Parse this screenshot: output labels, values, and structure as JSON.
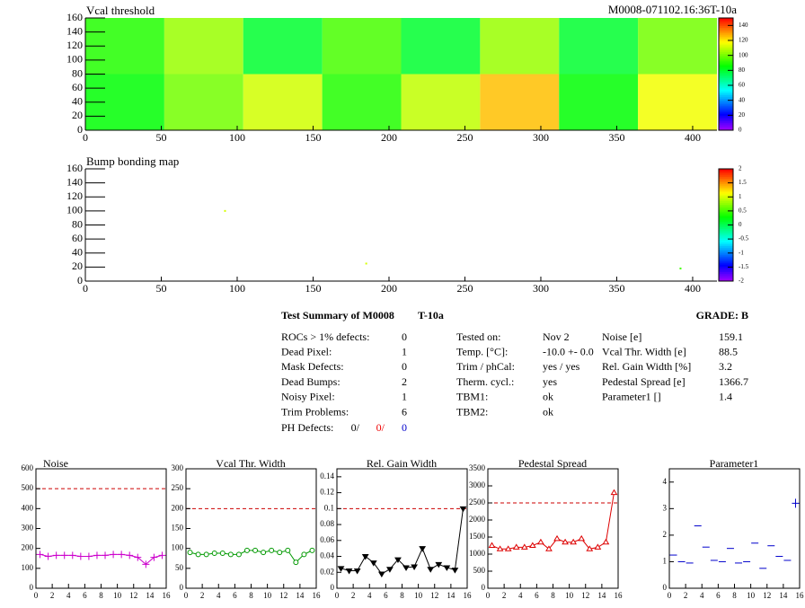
{
  "chart_data": [
    {
      "type": "heatmap",
      "title": "Vcal threshold",
      "subtitle": "M0008-071102.16:36T-10a",
      "xlim": [
        0,
        416
      ],
      "xticks": [
        0,
        50,
        100,
        150,
        200,
        250,
        300,
        350,
        400
      ],
      "ylim": [
        0,
        160
      ],
      "yticks": [
        0,
        20,
        40,
        60,
        80,
        100,
        120,
        140,
        160
      ],
      "zlim": [
        0,
        150
      ],
      "zticks": [
        0,
        20,
        40,
        60,
        80,
        100,
        120,
        140
      ],
      "values": [
        [
          85,
          100,
          112,
          90,
          110,
          126,
          85,
          116
        ],
        [
          90,
          105,
          80,
          95,
          80,
          105,
          80,
          100
        ]
      ]
    },
    {
      "type": "scatter_map",
      "title": "Bump bonding map",
      "xlim": [
        0,
        416
      ],
      "xticks": [
        0,
        50,
        100,
        150,
        200,
        250,
        300,
        350,
        400
      ],
      "ylim": [
        0,
        160
      ],
      "yticks": [
        0,
        20,
        40,
        60,
        80,
        100,
        120,
        140,
        160
      ],
      "zlim": [
        -2,
        2
      ],
      "zticks": [
        -2,
        -1.5,
        -1,
        -0.5,
        0,
        0.5,
        1,
        1.5,
        2
      ],
      "x": [
        92,
        185,
        392
      ],
      "y": [
        100,
        25,
        18
      ],
      "values": [
        1,
        1,
        0.5
      ]
    },
    {
      "type": "line",
      "title": "Noise",
      "marker": "plus",
      "color": "#cc00cc",
      "threshold": 500,
      "x": [
        0.5,
        1.5,
        2.5,
        3.5,
        4.5,
        5.5,
        6.5,
        7.5,
        8.5,
        9.5,
        10.5,
        11.5,
        12.5,
        13.5,
        14.5,
        15.5
      ],
      "values": [
        170,
        160,
        165,
        165,
        165,
        160,
        160,
        165,
        165,
        170,
        170,
        165,
        155,
        120,
        155,
        165
      ],
      "xlim": [
        0,
        16
      ],
      "xticks": [
        0,
        2,
        4,
        6,
        8,
        10,
        12,
        14,
        16
      ],
      "ylim": [
        0,
        600
      ],
      "yticks": [
        0,
        100,
        200,
        300,
        400,
        500,
        600
      ]
    },
    {
      "type": "line",
      "title": "Vcal Thr. Width",
      "marker": "circle",
      "color": "#009900",
      "threshold": 200,
      "x": [
        0.5,
        1.5,
        2.5,
        3.5,
        4.5,
        5.5,
        6.5,
        7.5,
        8.5,
        9.5,
        10.5,
        11.5,
        12.5,
        13.5,
        14.5,
        15.5
      ],
      "values": [
        90,
        85,
        85,
        88,
        88,
        85,
        85,
        95,
        95,
        90,
        95,
        90,
        95,
        65,
        85,
        95
      ],
      "xlim": [
        0,
        16
      ],
      "xticks": [
        0,
        2,
        4,
        6,
        8,
        10,
        12,
        14,
        16
      ],
      "ylim": [
        0,
        300
      ],
      "yticks": [
        0,
        50,
        100,
        150,
        200,
        250,
        300
      ]
    },
    {
      "type": "line",
      "title": "Rel. Gain Width",
      "marker": "tri-down",
      "color": "#000000",
      "threshold": 0.1,
      "x": [
        0.5,
        1.5,
        2.5,
        3.5,
        4.5,
        5.5,
        6.5,
        7.5,
        8.5,
        9.5,
        10.5,
        11.5,
        12.5,
        13.5,
        14.5,
        15.5
      ],
      "values": [
        0.025,
        0.022,
        0.022,
        0.04,
        0.032,
        0.018,
        0.024,
        0.036,
        0.026,
        0.027,
        0.05,
        0.024,
        0.03,
        0.026,
        0.023,
        0.1
      ],
      "xlim": [
        0,
        16
      ],
      "xticks": [
        0,
        2,
        4,
        6,
        8,
        10,
        12,
        14,
        16
      ],
      "ylim": [
        0,
        0.15
      ],
      "yticks": [
        0,
        0.02,
        0.04,
        0.06,
        0.08,
        0.1,
        0.12,
        0.14
      ]
    },
    {
      "type": "line",
      "title": "Pedestal Spread",
      "marker": "tri-up",
      "color": "#dd0000",
      "threshold": 2500,
      "x": [
        0.5,
        1.5,
        2.5,
        3.5,
        4.5,
        5.5,
        6.5,
        7.5,
        8.5,
        9.5,
        10.5,
        11.5,
        12.5,
        13.5,
        14.5,
        15.5
      ],
      "values": [
        1250,
        1150,
        1150,
        1200,
        1200,
        1250,
        1350,
        1150,
        1450,
        1350,
        1350,
        1450,
        1150,
        1200,
        1350,
        2800
      ],
      "xlim": [
        0,
        16
      ],
      "xticks": [
        0,
        2,
        4,
        6,
        8,
        10,
        12,
        14,
        16
      ],
      "ylim": [
        0,
        3500
      ],
      "yticks": [
        0,
        500,
        1000,
        1500,
        2000,
        2500,
        3000,
        3500
      ]
    },
    {
      "type": "markers",
      "title": "Parameter1",
      "marker": "dash",
      "color": "#0000cc",
      "x": [
        0.5,
        1.5,
        2.5,
        3.5,
        4.5,
        5.5,
        6.5,
        7.5,
        8.5,
        9.5,
        10.5,
        11.5,
        12.5,
        13.5,
        14.5,
        15.5
      ],
      "values": [
        1.25,
        1.0,
        0.95,
        2.35,
        1.55,
        1.05,
        1.0,
        1.5,
        0.95,
        1.0,
        1.7,
        0.75,
        1.6,
        1.2,
        1.05,
        3.2
      ],
      "xlim": [
        0,
        16
      ],
      "xticks": [
        0,
        2,
        4,
        6,
        8,
        10,
        12,
        14,
        16
      ],
      "ylim": [
        0,
        4.5
      ],
      "yticks": [
        0,
        1,
        2,
        3,
        4
      ]
    }
  ],
  "summary": {
    "title": "Test Summary of M0008",
    "temp": "T-10a",
    "grade": "GRADE:  B",
    "left": [
      [
        "ROCs > 1% defects:",
        0
      ],
      [
        "Dead Pixel:",
        1
      ],
      [
        "Mask Defects:",
        0
      ],
      [
        "Dead Bumps:",
        2
      ],
      [
        "Noisy Pixel:",
        1
      ],
      [
        "Trim Problems:",
        6
      ]
    ],
    "ph_label": "PH Defects:",
    "ph": [
      "0/",
      "0/",
      "0"
    ],
    "middle": [
      [
        "Tested on:",
        "Nov 2"
      ],
      [
        "Temp. [°C]:",
        "-10.0 +- 0.0"
      ],
      [
        "Trim / phCal:",
        "yes / yes"
      ],
      [
        "Therm. cycl.:",
        "yes"
      ],
      [
        "TBM1:",
        "ok"
      ],
      [
        "TBM2:",
        "ok"
      ]
    ],
    "right": [
      [
        "Noise [e]",
        159.1
      ],
      [
        "Vcal Thr. Width [e]",
        88.5
      ],
      [
        "Rel. Gain Width [%]",
        3.2
      ],
      [
        "Pedestal Spread [e]",
        1366.7
      ],
      [
        "Parameter1 []",
        1.4
      ]
    ]
  }
}
